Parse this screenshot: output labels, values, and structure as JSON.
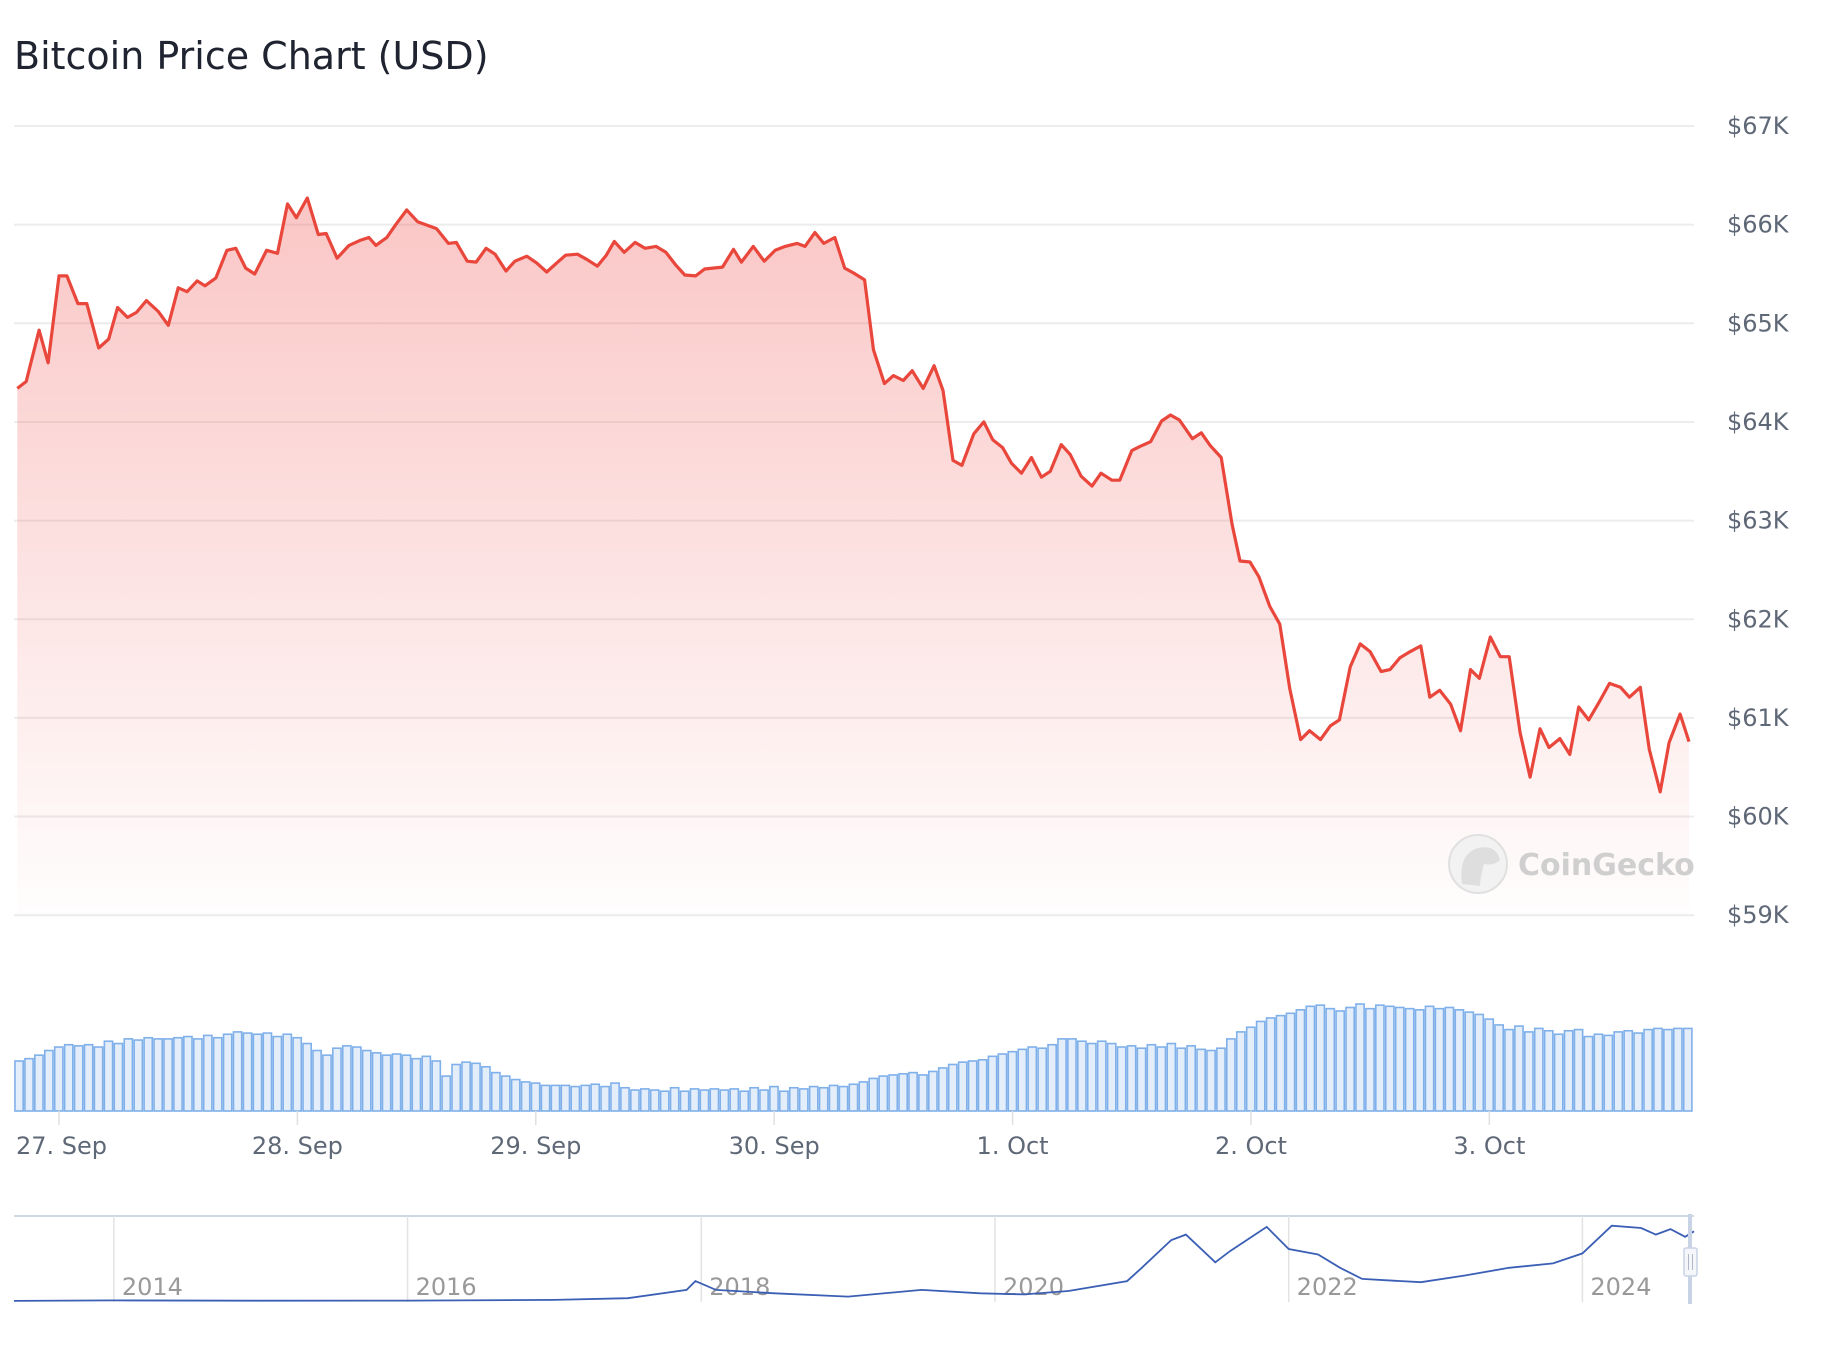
{
  "chart_data": {
    "type": "line",
    "title": "Bitcoin Price Chart (USD)",
    "xlabel": "",
    "ylabel": "",
    "watermark": "CoinGecko",
    "line_color": "#e9463c",
    "volume_color": "#7fb0ea",
    "navigator_color": "#3b5fb5",
    "ylim": [
      59000,
      67000
    ],
    "y_ticks": [
      {
        "value": 67000,
        "label": "$67K"
      },
      {
        "value": 66000,
        "label": "$66K"
      },
      {
        "value": 65000,
        "label": "$65K"
      },
      {
        "value": 64000,
        "label": "$64K"
      },
      {
        "value": 63000,
        "label": "$63K"
      },
      {
        "value": 62000,
        "label": "$62K"
      },
      {
        "value": 61000,
        "label": "$61K"
      },
      {
        "value": 60000,
        "label": "$60K"
      },
      {
        "value": 59000,
        "label": "$59K"
      }
    ],
    "x_unit": "hours since 27 Sep 00:00",
    "x_ticks": [
      {
        "value": 0,
        "label": "27. Sep"
      },
      {
        "value": 24,
        "label": "28. Sep"
      },
      {
        "value": 48,
        "label": "29. Sep"
      },
      {
        "value": 72,
        "label": "30. Sep"
      },
      {
        "value": 96,
        "label": "1. Oct"
      },
      {
        "value": 120,
        "label": "2. Oct"
      },
      {
        "value": 144,
        "label": "3. Oct"
      }
    ],
    "price_series": [
      [
        -4.2,
        64340
      ],
      [
        -3.3,
        64410
      ],
      [
        -2.0,
        64930
      ],
      [
        -1.1,
        64600
      ],
      [
        0,
        65480
      ],
      [
        0.8,
        65480
      ],
      [
        1.9,
        65200
      ],
      [
        2.8,
        65200
      ],
      [
        4.0,
        64750
      ],
      [
        5.0,
        64840
      ],
      [
        5.9,
        65160
      ],
      [
        6.9,
        65060
      ],
      [
        7.8,
        65110
      ],
      [
        8.8,
        65230
      ],
      [
        10.0,
        65120
      ],
      [
        11.0,
        64980
      ],
      [
        12.0,
        65360
      ],
      [
        12.9,
        65320
      ],
      [
        13.9,
        65430
      ],
      [
        14.7,
        65380
      ],
      [
        15.8,
        65460
      ],
      [
        16.9,
        65740
      ],
      [
        17.8,
        65760
      ],
      [
        18.8,
        65560
      ],
      [
        19.7,
        65500
      ],
      [
        20.9,
        65740
      ],
      [
        22.0,
        65710
      ],
      [
        23.0,
        66210
      ],
      [
        23.9,
        66070
      ],
      [
        25.0,
        66270
      ],
      [
        26.1,
        65900
      ],
      [
        26.9,
        65910
      ],
      [
        28.0,
        65660
      ],
      [
        29.2,
        65790
      ],
      [
        30.3,
        65840
      ],
      [
        31.2,
        65870
      ],
      [
        31.9,
        65790
      ],
      [
        33.0,
        65870
      ],
      [
        33.9,
        66000
      ],
      [
        35.0,
        66150
      ],
      [
        36.1,
        66030
      ],
      [
        38.0,
        65960
      ],
      [
        39.2,
        65810
      ],
      [
        40.0,
        65820
      ],
      [
        41.1,
        65630
      ],
      [
        42.0,
        65620
      ],
      [
        43.0,
        65760
      ],
      [
        43.9,
        65700
      ],
      [
        45.0,
        65530
      ],
      [
        45.9,
        65630
      ],
      [
        47.1,
        65680
      ],
      [
        48.1,
        65610
      ],
      [
        49.1,
        65520
      ],
      [
        50.1,
        65610
      ],
      [
        51.0,
        65690
      ],
      [
        52.2,
        65700
      ],
      [
        53.1,
        65650
      ],
      [
        54.2,
        65580
      ],
      [
        55.1,
        65690
      ],
      [
        55.9,
        65830
      ],
      [
        56.9,
        65720
      ],
      [
        58.0,
        65820
      ],
      [
        59.0,
        65760
      ],
      [
        60.1,
        65780
      ],
      [
        61.1,
        65720
      ],
      [
        62.1,
        65590
      ],
      [
        63.0,
        65490
      ],
      [
        64.1,
        65480
      ],
      [
        65.0,
        65550
      ],
      [
        66.8,
        65570
      ],
      [
        67.9,
        65750
      ],
      [
        68.7,
        65620
      ],
      [
        69.9,
        65780
      ],
      [
        71.0,
        65630
      ],
      [
        72.1,
        65740
      ],
      [
        73.1,
        65780
      ],
      [
        74.3,
        65810
      ],
      [
        75.1,
        65780
      ],
      [
        76.1,
        65920
      ],
      [
        77.0,
        65810
      ],
      [
        78.1,
        65870
      ],
      [
        79.1,
        65560
      ],
      [
        80.0,
        65510
      ],
      [
        81.1,
        65440
      ],
      [
        82.0,
        64730
      ],
      [
        83.1,
        64390
      ],
      [
        84.0,
        64470
      ],
      [
        85.0,
        64420
      ],
      [
        85.9,
        64520
      ],
      [
        87.0,
        64340
      ],
      [
        88.1,
        64570
      ],
      [
        89.0,
        64320
      ],
      [
        90.0,
        63610
      ],
      [
        90.9,
        63560
      ],
      [
        92.1,
        63880
      ],
      [
        93.1,
        64000
      ],
      [
        94.0,
        63820
      ],
      [
        95.0,
        63740
      ],
      [
        95.9,
        63580
      ],
      [
        96.9,
        63480
      ],
      [
        97.9,
        63640
      ],
      [
        98.9,
        63440
      ],
      [
        99.8,
        63500
      ],
      [
        100.9,
        63770
      ],
      [
        101.8,
        63670
      ],
      [
        102.9,
        63450
      ],
      [
        104.0,
        63350
      ],
      [
        104.9,
        63480
      ],
      [
        106.0,
        63410
      ],
      [
        106.8,
        63410
      ],
      [
        108.0,
        63710
      ],
      [
        108.8,
        63750
      ],
      [
        109.9,
        63800
      ],
      [
        111.0,
        64010
      ],
      [
        111.9,
        64070
      ],
      [
        112.8,
        64020
      ],
      [
        114.1,
        63830
      ],
      [
        115.0,
        63890
      ],
      [
        115.9,
        63760
      ],
      [
        117.0,
        63640
      ],
      [
        118.1,
        62960
      ],
      [
        118.9,
        62590
      ],
      [
        119.9,
        62580
      ],
      [
        120.8,
        62430
      ],
      [
        121.9,
        62130
      ],
      [
        122.9,
        61950
      ],
      [
        123.9,
        61300
      ],
      [
        125.0,
        60780
      ],
      [
        125.9,
        60870
      ],
      [
        127.0,
        60780
      ],
      [
        128.0,
        60920
      ],
      [
        128.9,
        60980
      ],
      [
        130.0,
        61520
      ],
      [
        131.0,
        61750
      ],
      [
        132.0,
        61670
      ],
      [
        133.1,
        61470
      ],
      [
        134.0,
        61490
      ],
      [
        135.0,
        61610
      ],
      [
        136.0,
        61670
      ],
      [
        137.1,
        61730
      ],
      [
        138.0,
        61210
      ],
      [
        139.0,
        61280
      ],
      [
        140.1,
        61140
      ],
      [
        141.1,
        60870
      ],
      [
        142.1,
        61490
      ],
      [
        143.0,
        61400
      ],
      [
        144.1,
        61820
      ],
      [
        145.1,
        61620
      ],
      [
        146.0,
        61620
      ],
      [
        147.1,
        60850
      ],
      [
        148.1,
        60400
      ],
      [
        149.1,
        60890
      ],
      [
        150.0,
        60700
      ],
      [
        151.1,
        60790
      ],
      [
        152.1,
        60630
      ],
      [
        153.0,
        61110
      ],
      [
        154.0,
        60980
      ],
      [
        155.0,
        61150
      ],
      [
        156.1,
        61350
      ],
      [
        157.2,
        61310
      ],
      [
        158.1,
        61210
      ],
      [
        159.2,
        61310
      ],
      [
        160.1,
        60680
      ],
      [
        161.2,
        60250
      ],
      [
        162.1,
        60750
      ],
      [
        163.2,
        61040
      ],
      [
        164.1,
        60760
      ]
    ],
    "volume_start_hour": -4,
    "volume_relative": [
      43,
      45,
      48,
      52,
      55,
      57,
      56,
      57,
      55,
      60,
      58,
      62,
      61,
      63,
      62,
      62,
      63,
      64,
      62,
      65,
      63,
      66,
      68,
      67,
      66,
      67,
      64,
      66,
      63,
      58,
      52,
      48,
      54,
      56,
      55,
      52,
      50,
      48,
      49,
      48,
      45,
      47,
      43,
      30,
      40,
      42,
      41,
      38,
      33,
      30,
      27,
      25,
      24,
      22,
      22,
      22,
      21,
      22,
      23,
      21,
      24,
      20,
      18,
      19,
      18,
      17,
      20,
      17,
      19,
      18,
      19,
      18,
      19,
      17,
      20,
      18,
      21,
      17,
      20,
      19,
      21,
      20,
      22,
      21,
      23,
      25,
      28,
      30,
      31,
      32,
      33,
      31,
      34,
      37,
      40,
      42,
      43,
      44,
      47,
      49,
      51,
      53,
      55,
      54,
      57,
      62,
      62,
      60,
      58,
      60,
      58,
      55,
      56,
      54,
      57,
      55,
      58,
      54,
      56,
      53,
      52,
      54,
      62,
      68,
      72,
      77,
      80,
      82,
      84,
      87,
      90,
      91,
      88,
      86,
      89,
      92,
      88,
      91,
      90,
      89,
      88,
      87,
      90,
      88,
      89,
      87,
      85,
      83,
      79,
      74,
      70,
      73,
      68,
      71,
      69,
      66,
      69,
      70,
      64,
      66,
      65,
      68,
      69,
      67,
      70,
      71,
      70,
      71,
      71
    ],
    "navigator": {
      "xlim": [
        2013.32,
        2024.76
      ],
      "ylim": [
        0,
        75000
      ],
      "year_ticks": [
        {
          "value": 2014,
          "label": "2014"
        },
        {
          "value": 2016,
          "label": "2016"
        },
        {
          "value": 2018,
          "label": "2018"
        },
        {
          "value": 2020,
          "label": "2020"
        },
        {
          "value": 2022,
          "label": "2022"
        },
        {
          "value": 2024,
          "label": "2024"
        }
      ],
      "series": [
        [
          2013.32,
          100
        ],
        [
          2014.0,
          500
        ],
        [
          2015.0,
          300
        ],
        [
          2016.0,
          400
        ],
        [
          2017.0,
          1000
        ],
        [
          2017.5,
          2500
        ],
        [
          2017.9,
          10000
        ],
        [
          2017.96,
          18000
        ],
        [
          2018.1,
          10000
        ],
        [
          2018.5,
          7000
        ],
        [
          2019.0,
          4000
        ],
        [
          2019.5,
          10000
        ],
        [
          2019.9,
          7000
        ],
        [
          2020.2,
          6000
        ],
        [
          2020.5,
          9000
        ],
        [
          2020.9,
          18000
        ],
        [
          2021.0,
          30000
        ],
        [
          2021.2,
          55000
        ],
        [
          2021.3,
          60000
        ],
        [
          2021.5,
          35000
        ],
        [
          2021.6,
          45000
        ],
        [
          2021.85,
          67000
        ],
        [
          2022.0,
          47000
        ],
        [
          2022.2,
          42000
        ],
        [
          2022.35,
          30000
        ],
        [
          2022.5,
          20000
        ],
        [
          2022.9,
          17000
        ],
        [
          2023.2,
          23000
        ],
        [
          2023.5,
          30000
        ],
        [
          2023.8,
          34000
        ],
        [
          2024.0,
          43000
        ],
        [
          2024.2,
          68000
        ],
        [
          2024.4,
          66000
        ],
        [
          2024.5,
          60000
        ],
        [
          2024.6,
          65000
        ],
        [
          2024.7,
          58000
        ],
        [
          2024.76,
          63000
        ]
      ]
    }
  }
}
